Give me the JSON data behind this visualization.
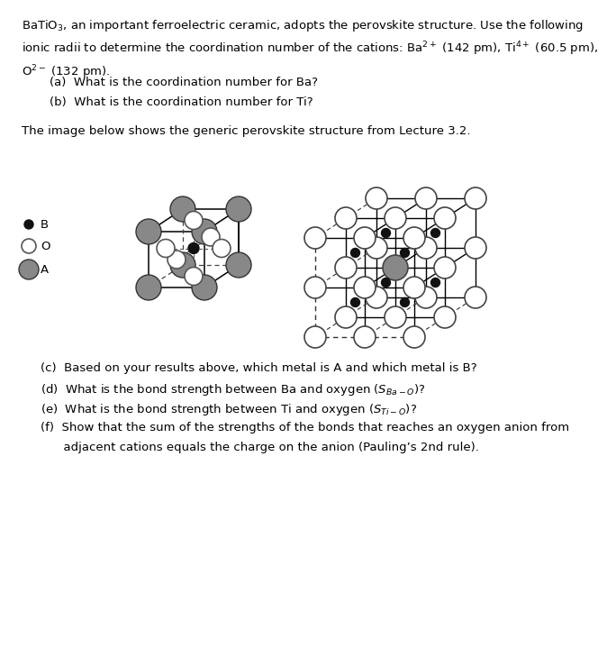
{
  "bg_color": "#ffffff",
  "text_color": "#000000",
  "font_size": 9.5,
  "para1": "BaTiO$_3$, an important ferroelectric ceramic, adopts the perovskite structure. Use the following\nionic radii to determine the coordination number of the cations: Ba$^{2+}$ (142 pm), Ti$^{4+}$ (60.5 pm),\nO$^{2-}$ (132 pm).",
  "q_a": "(a)  What is the coordination number for Ba?",
  "q_b": "(b)  What is the coordination number for Ti?",
  "middle_text": "The image below shows the generic perovskite structure from Lecture 3.2.",
  "q_c": "(c)  Based on your results above, which metal is A and which metal is B?",
  "q_d": "(d)  What is the bond strength between Ba and oxygen ($S_{Ba-O}$)?",
  "q_e": "(e)  What is the bond strength between Ti and oxygen ($S_{Ti-O}$)?",
  "q_f1": "(f)  Show that the sum of the strengths of the bonds that reaches an oxygen anion from",
  "q_f2": "      adjacent cations equals the charge on the anion (Pauling’s 2nd rule).",
  "color_A": "#888888",
  "color_O_fill": "#ffffff",
  "color_O_edge": "#555555",
  "color_B": "#111111",
  "color_edge": "#333333",
  "color_line": "#000000"
}
